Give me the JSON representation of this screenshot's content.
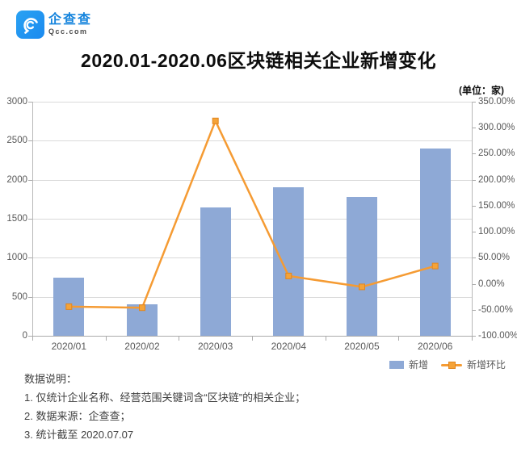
{
  "brand": {
    "name": "企查查",
    "domain": "Qcc.com",
    "logo_color": "#1b8af0",
    "name_color": "#1584dd"
  },
  "title": "2020.01-2020.06区块链相关企业新增变化",
  "unit_label": "(单位：家)",
  "chart_data": {
    "type": "bar",
    "subtype": "combo-bar-line",
    "categories": [
      "2020/01",
      "2020/02",
      "2020/03",
      "2020/04",
      "2020/05",
      "2020/06"
    ],
    "series": [
      {
        "name": "新增",
        "type": "bar",
        "axis": "left",
        "color": "#8EA9D6",
        "values": [
          740,
          400,
          1650,
          1900,
          1780,
          2400
        ]
      },
      {
        "name": "新增环比",
        "type": "line",
        "axis": "right",
        "color": "#F59B33",
        "marker_color": "#F5A338",
        "marker_edge": "#E1861F",
        "values_percent": [
          -44,
          -46,
          313,
          15,
          -6,
          34
        ]
      }
    ],
    "left_axis": {
      "min": 0,
      "max": 3000,
      "step": 500,
      "ticks": [
        "3000",
        "2500",
        "2000",
        "1500",
        "1000",
        "500",
        "0"
      ]
    },
    "right_axis": {
      "min": -100,
      "max": 350,
      "step": 50,
      "ticks": [
        "350.00%",
        "300.00%",
        "250.00%",
        "200.00%",
        "150.00%",
        "100.00%",
        "50.00%",
        "0.00%",
        "-50.00%",
        "-100.00%"
      ]
    },
    "grid": true,
    "legend_position": "bottom-right",
    "title": "2020.01-2020.06区块链相关企业新增变化",
    "ylabel_left": "家",
    "ylabel_right": "%"
  },
  "legend": {
    "bar_label": "新增",
    "line_label": "新增环比"
  },
  "notes": {
    "heading": "数据说明：",
    "items": [
      "1. 仅统计企业名称、经营范围关键词含“区块链”的相关企业；",
      "2. 数据来源：企查查；",
      "3. 统计截至 2020.07.07"
    ]
  }
}
